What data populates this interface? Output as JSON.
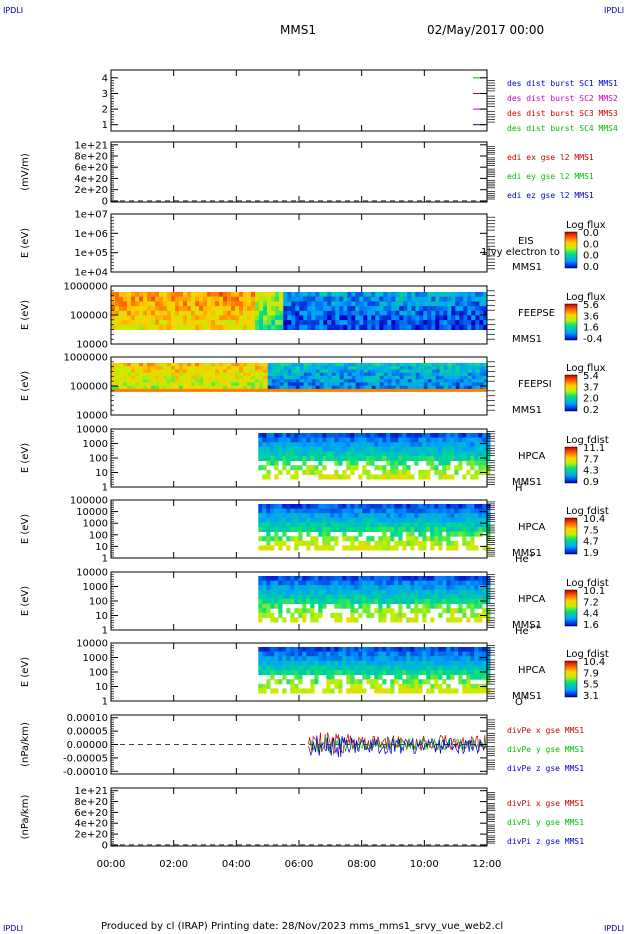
{
  "corner_label": "IPDLI",
  "header": {
    "spacecraft": "MMS1",
    "datetime": "02/May/2017 00:00"
  },
  "footer": {
    "text": "Produced by cl (IRAP)   Printing date: 28/Nov/2023   mms_mms1_srvy_vue_web2.cl"
  },
  "colors": {
    "red": "#cc0000",
    "green": "#00bb00",
    "blue": "#0000cc",
    "magenta": "#cc00cc"
  },
  "chart_data": {
    "type": "stacked-timeseries",
    "x_ticks": [
      "00:00",
      "02:00",
      "04:00",
      "06:00",
      "08:00",
      "10:00",
      "12:00"
    ],
    "xlim_hours": [
      0,
      12
    ],
    "panels": [
      {
        "id": "dist",
        "kind": "line",
        "yticks": [
          "4",
          "3",
          "2",
          "1"
        ],
        "ytick_values": [
          4,
          3,
          2,
          1
        ],
        "ylim": [
          0.6,
          4.5
        ],
        "ylabel": "",
        "legend": [
          {
            "text": "des dist burst SC1 MMS1",
            "color": "#0000cc"
          },
          {
            "text": "des dist burst SC2 MMS2",
            "color": "#cc00cc"
          },
          {
            "text": "des dist burst SC3 MMS3",
            "color": "#cc0000"
          },
          {
            "text": "des dist burst SC4 MMS4",
            "color": "#00bb00"
          }
        ],
        "markers": [
          {
            "y": 4,
            "color": "#00bb00"
          },
          {
            "y": 3,
            "color": "#cc0000"
          },
          {
            "y": 2,
            "color": "#cc00cc"
          },
          {
            "y": 1,
            "color": "#0000cc"
          }
        ]
      },
      {
        "id": "edi",
        "kind": "line",
        "yticks": [
          "1e+21",
          "8e+20",
          "6e+20",
          "4e+20",
          "2e+20",
          "0"
        ],
        "ytick_values": [
          1e+21,
          8e+20,
          6e+20,
          4e+20,
          2e+20,
          0
        ],
        "ylim": [
          -2e+19,
          1.05e+21
        ],
        "ylabel": "(mV/m)",
        "dashed_zero": true,
        "legend": [
          {
            "text": "edi ex gse l2 MMS1",
            "color": "#cc0000"
          },
          {
            "text": "edi ey gse l2 MMS1",
            "color": "#00bb00"
          },
          {
            "text": "edi ez gse l2 MMS1",
            "color": "#0000cc"
          }
        ]
      },
      {
        "id": "eis",
        "kind": "spectrogram",
        "yticks": [
          "1e+07",
          "1e+06",
          "1e+05",
          "1e+04"
        ],
        "ytick_values": [
          10000000.0,
          1000000.0,
          100000.0,
          10000.0
        ],
        "ylabel": "E (eV)",
        "labels": [
          "EIS",
          "MMS1"
        ],
        "overlay": "1|vy electron to",
        "cb_title": "Log flux",
        "cb_ticks": [
          "0.0",
          "0.0",
          "0.0",
          "0.0"
        ]
      },
      {
        "id": "feepse",
        "kind": "spectrogram",
        "yticks": [
          "1000000",
          "100000",
          "10000"
        ],
        "ytick_values": [
          1000000.0,
          100000.0,
          10000.0
        ],
        "ylabel": "E (eV)",
        "labels": [
          "FEEPSE",
          "MMS1"
        ],
        "cb_title": "Log flux",
        "cb_ticks": [
          "5.6",
          "3.6",
          "1.6",
          "-0.4"
        ],
        "segments": [
          {
            "t0": 0.0,
            "t1": 4.6,
            "level": 0.78
          },
          {
            "t0": 4.6,
            "t1": 5.5,
            "level": 0.55
          },
          {
            "t0": 5.5,
            "t1": 12.0,
            "level": 0.22
          }
        ]
      },
      {
        "id": "feepsi",
        "kind": "spectrogram",
        "yticks": [
          "1000000",
          "100000",
          "10000"
        ],
        "ytick_values": [
          1000000.0,
          100000.0,
          10000.0
        ],
        "ylabel": "E (eV)",
        "labels": [
          "FEEPSI",
          "MMS1"
        ],
        "cb_title": "Log flux",
        "cb_ticks": [
          "5.4",
          "3.7",
          "2.0",
          "0.2"
        ],
        "segments": [
          {
            "t0": 0.0,
            "t1": 5.0,
            "level": 0.7
          },
          {
            "t0": 5.0,
            "t1": 12.0,
            "level": 0.3
          }
        ]
      },
      {
        "id": "hpca_h",
        "kind": "spectrogram",
        "yticks": [
          "10000",
          "1000",
          "100",
          "10",
          "1"
        ],
        "ytick_values": [
          10000.0,
          1000.0,
          100.0,
          10.0,
          1
        ],
        "ylabel": "E (eV)",
        "labels": [
          "HPCA",
          "MMS1"
        ],
        "species": "H",
        "species_sup": "+",
        "cb_title": "Log fdist",
        "cb_ticks": [
          "11.1",
          "7.7",
          "4.3",
          "0.9"
        ],
        "data_start_hour": 4.7
      },
      {
        "id": "hpca_he",
        "kind": "spectrogram",
        "yticks": [
          "100000",
          "10000",
          "1000",
          "100",
          "10",
          "1"
        ],
        "ytick_values": [
          100000.0,
          10000.0,
          1000.0,
          100.0,
          10.0,
          1
        ],
        "ylabel": "E (eV)",
        "labels": [
          "HPCA",
          "MMS1"
        ],
        "species": "He",
        "species_sup": "+",
        "cb_title": "Log fdist",
        "cb_ticks": [
          "10.4",
          "7.5",
          "4.7",
          "1.9"
        ],
        "data_start_hour": 4.7
      },
      {
        "id": "hpca_he2",
        "kind": "spectrogram",
        "yticks": [
          "10000",
          "1000",
          "100",
          "10",
          "1"
        ],
        "ytick_values": [
          10000.0,
          1000.0,
          100.0,
          10.0,
          1
        ],
        "ylabel": "E (eV)",
        "labels": [
          "HPCA",
          "MMS1"
        ],
        "species": "He",
        "species_sup": "++",
        "cb_title": "Log fdist",
        "cb_ticks": [
          "10.1",
          "7.2",
          "4.4",
          "1.6"
        ],
        "data_start_hour": 4.7
      },
      {
        "id": "hpca_o",
        "kind": "spectrogram",
        "yticks": [
          "10000",
          "1000",
          "100",
          "10",
          "1"
        ],
        "ytick_values": [
          10000.0,
          1000.0,
          100.0,
          10.0,
          1
        ],
        "ylabel": "E (eV)",
        "labels": [
          "HPCA",
          "MMS1"
        ],
        "species": "O",
        "species_sup": "+",
        "cb_title": "Log fdist",
        "cb_ticks": [
          "10.4",
          "7.9",
          "5.5",
          "3.1"
        ],
        "data_start_hour": 4.7
      },
      {
        "id": "divpe",
        "kind": "line",
        "yticks": [
          "0.00010",
          "0.00005",
          "0.00000",
          "-0.00005",
          "-0.00010"
        ],
        "ytick_values": [
          0.0001,
          5e-05,
          0,
          -5e-05,
          -0.0001
        ],
        "ylim": [
          -0.00011,
          0.00011
        ],
        "ylabel": "(nPa/km)",
        "dashed_zero": true,
        "data_start_hour": 6.3,
        "legend": [
          {
            "text": "divPe x gse MMS1",
            "color": "#cc0000"
          },
          {
            "text": "divPe y gse MMS1",
            "color": "#00bb00"
          },
          {
            "text": "divPe z gse MMS1",
            "color": "#0000cc"
          }
        ]
      },
      {
        "id": "divpi",
        "kind": "line",
        "yticks": [
          "1e+21",
          "8e+20",
          "6e+20",
          "4e+20",
          "2e+20",
          "0"
        ],
        "ytick_values": [
          1e+21,
          8e+20,
          6e+20,
          4e+20,
          2e+20,
          0
        ],
        "ylim": [
          -2e+19,
          1.05e+21
        ],
        "ylabel": "(nPa/km)",
        "dashed_zero": true,
        "legend": [
          {
            "text": "divPi x gse MMS1",
            "color": "#cc0000"
          },
          {
            "text": "divPi y gse MMS1",
            "color": "#00bb00"
          },
          {
            "text": "divPi z gse MMS1",
            "color": "#0000cc"
          }
        ]
      }
    ]
  }
}
